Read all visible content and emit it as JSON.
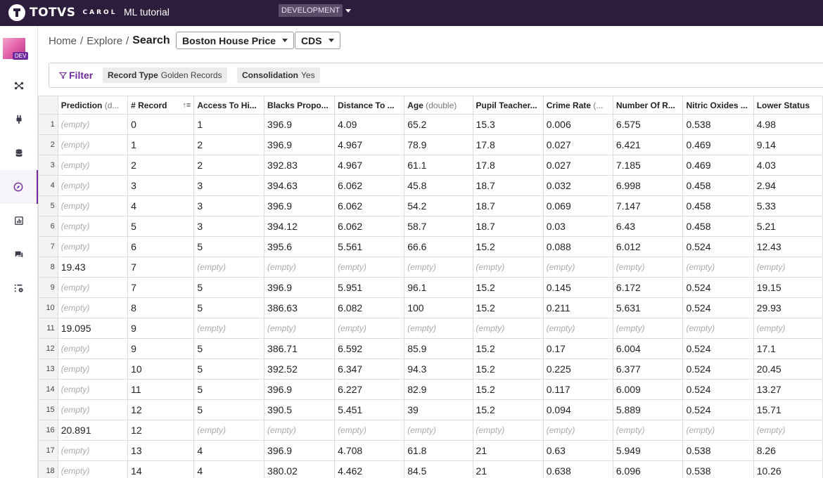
{
  "topbar": {
    "brand": "TOTVS",
    "brand_sub": "CAROL",
    "app_title": "ML tutorial",
    "environment": "DEVELOPMENT"
  },
  "sidebar": {
    "dev_tag": "DEV",
    "items": [
      {
        "name": "network-icon"
      },
      {
        "name": "plug-icon"
      },
      {
        "name": "database-icon"
      },
      {
        "name": "compass-icon",
        "active": true
      },
      {
        "name": "chart-icon"
      },
      {
        "name": "chat-icon"
      },
      {
        "name": "settings-grid-icon"
      }
    ]
  },
  "breadcrumb": {
    "home": "Home",
    "explore": "Explore",
    "current": "Search",
    "sep": "/"
  },
  "selectors": {
    "dataset": "Boston House Price",
    "storage": "CDS"
  },
  "filter": {
    "label": "Filter",
    "chips": [
      {
        "key": "Record Type",
        "value": "Golden Records"
      },
      {
        "key": "Consolidation",
        "value": "Yes"
      }
    ]
  },
  "table": {
    "columns": [
      {
        "label": "Prediction",
        "type": "(d..."
      },
      {
        "label": "# Record",
        "type": ""
      },
      {
        "label": "Access To Hi...",
        "type": ""
      },
      {
        "label": "Blacks Propo...",
        "type": ""
      },
      {
        "label": "Distance To ...",
        "type": ""
      },
      {
        "label": "Age",
        "type": "(double)"
      },
      {
        "label": "Pupil Teacher...",
        "type": ""
      },
      {
        "label": "Crime Rate",
        "type": "(..."
      },
      {
        "label": "Number Of R...",
        "type": ""
      },
      {
        "label": "Nitric Oxides ...",
        "type": ""
      },
      {
        "label": "Lower Status",
        "type": ""
      }
    ],
    "empty_text": "(empty)",
    "rows": [
      [
        "1",
        null,
        "0",
        "1",
        "396.9",
        "4.09",
        "65.2",
        "15.3",
        "0.006",
        "6.575",
        "0.538",
        "4.98"
      ],
      [
        "2",
        null,
        "1",
        "2",
        "396.9",
        "4.967",
        "78.9",
        "17.8",
        "0.027",
        "6.421",
        "0.469",
        "9.14"
      ],
      [
        "3",
        null,
        "2",
        "2",
        "392.83",
        "4.967",
        "61.1",
        "17.8",
        "0.027",
        "7.185",
        "0.469",
        "4.03"
      ],
      [
        "4",
        null,
        "3",
        "3",
        "394.63",
        "6.062",
        "45.8",
        "18.7",
        "0.032",
        "6.998",
        "0.458",
        "2.94"
      ],
      [
        "5",
        null,
        "4",
        "3",
        "396.9",
        "6.062",
        "54.2",
        "18.7",
        "0.069",
        "7.147",
        "0.458",
        "5.33"
      ],
      [
        "6",
        null,
        "5",
        "3",
        "394.12",
        "6.062",
        "58.7",
        "18.7",
        "0.03",
        "6.43",
        "0.458",
        "5.21"
      ],
      [
        "7",
        null,
        "6",
        "5",
        "395.6",
        "5.561",
        "66.6",
        "15.2",
        "0.088",
        "6.012",
        "0.524",
        "12.43"
      ],
      [
        "8",
        "19.43",
        "7",
        null,
        null,
        null,
        null,
        null,
        null,
        null,
        null,
        null
      ],
      [
        "9",
        null,
        "7",
        "5",
        "396.9",
        "5.951",
        "96.1",
        "15.2",
        "0.145",
        "6.172",
        "0.524",
        "19.15"
      ],
      [
        "10",
        null,
        "8",
        "5",
        "386.63",
        "6.082",
        "100",
        "15.2",
        "0.211",
        "5.631",
        "0.524",
        "29.93"
      ],
      [
        "11",
        "19.095",
        "9",
        null,
        null,
        null,
        null,
        null,
        null,
        null,
        null,
        null
      ],
      [
        "12",
        null,
        "9",
        "5",
        "386.71",
        "6.592",
        "85.9",
        "15.2",
        "0.17",
        "6.004",
        "0.524",
        "17.1"
      ],
      [
        "13",
        null,
        "10",
        "5",
        "392.52",
        "6.347",
        "94.3",
        "15.2",
        "0.225",
        "6.377",
        "0.524",
        "20.45"
      ],
      [
        "14",
        null,
        "11",
        "5",
        "396.9",
        "6.227",
        "82.9",
        "15.2",
        "0.117",
        "6.009",
        "0.524",
        "13.27"
      ],
      [
        "15",
        null,
        "12",
        "5",
        "390.5",
        "5.451",
        "39",
        "15.2",
        "0.094",
        "5.889",
        "0.524",
        "15.71"
      ],
      [
        "16",
        "20.891",
        "12",
        null,
        null,
        null,
        null,
        null,
        null,
        null,
        null,
        null
      ],
      [
        "17",
        null,
        "13",
        "4",
        "396.9",
        "4.708",
        "61.8",
        "21",
        "0.63",
        "5.949",
        "0.538",
        "8.26"
      ],
      [
        "18",
        null,
        "14",
        "4",
        "380.02",
        "4.462",
        "84.5",
        "21",
        "0.638",
        "6.096",
        "0.538",
        "10.26"
      ]
    ]
  }
}
